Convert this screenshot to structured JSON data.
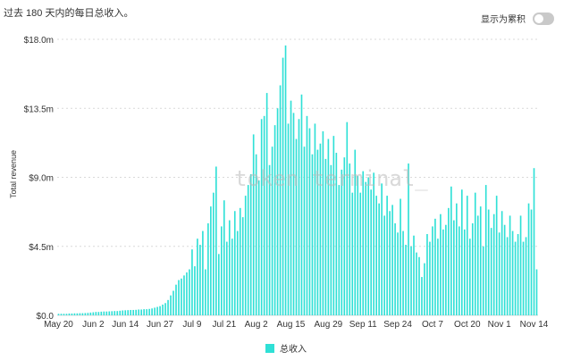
{
  "header": {
    "subtitle": "过去 180 天内的每日总收入。",
    "toggle_label": "显示为累积"
  },
  "watermark": "token terminal_",
  "legend": {
    "label": "总收入"
  },
  "colors": {
    "bar": "#2fe0d6",
    "grid": "#d9d9d9",
    "toggle_off": "#c9c9c9"
  },
  "chart_data": {
    "type": "bar",
    "title": "",
    "subtitle": "过去 180 天内的每日总收入。",
    "ylabel": "Total revenue",
    "xlabel": "",
    "ylim": [
      0,
      18.0
    ],
    "y_unit": "$M",
    "y_ticks": [
      {
        "value": 0,
        "label": "$0.0"
      },
      {
        "value": 4.5,
        "label": "$4.5m"
      },
      {
        "value": 9.0,
        "label": "$9.0m"
      },
      {
        "value": 13.5,
        "label": "$13.5m"
      },
      {
        "value": 18.0,
        "label": "$18.0m"
      }
    ],
    "x_ticks": [
      {
        "day": 0,
        "label": "May 20"
      },
      {
        "day": 13,
        "label": "Jun 2"
      },
      {
        "day": 25,
        "label": "Jun 14"
      },
      {
        "day": 38,
        "label": "Jun 27"
      },
      {
        "day": 50,
        "label": "Jul 9"
      },
      {
        "day": 62,
        "label": "Jul 21"
      },
      {
        "day": 74,
        "label": "Aug 2"
      },
      {
        "day": 87,
        "label": "Aug 15"
      },
      {
        "day": 101,
        "label": "Aug 29"
      },
      {
        "day": 114,
        "label": "Sep 11"
      },
      {
        "day": 127,
        "label": "Sep 24"
      },
      {
        "day": 140,
        "label": "Oct 7"
      },
      {
        "day": 153,
        "label": "Oct 20"
      },
      {
        "day": 165,
        "label": "Nov 1"
      },
      {
        "day": 178,
        "label": "Nov 14"
      }
    ],
    "grid": true,
    "legend_position": "bottom-center",
    "series": [
      {
        "name": "总收入",
        "values": [
          0.1,
          0.1,
          0.1,
          0.1,
          0.12,
          0.12,
          0.13,
          0.13,
          0.14,
          0.14,
          0.15,
          0.16,
          0.18,
          0.2,
          0.22,
          0.22,
          0.24,
          0.25,
          0.25,
          0.26,
          0.27,
          0.28,
          0.28,
          0.3,
          0.32,
          0.33,
          0.34,
          0.35,
          0.35,
          0.36,
          0.38,
          0.38,
          0.4,
          0.4,
          0.42,
          0.45,
          0.5,
          0.55,
          0.6,
          0.7,
          0.8,
          1.0,
          1.3,
          1.6,
          2.0,
          2.3,
          2.4,
          2.6,
          2.8,
          3.0,
          4.3,
          3.2,
          5.0,
          4.6,
          5.5,
          3.0,
          6.0,
          7.1,
          8.0,
          9.7,
          4.0,
          5.8,
          7.5,
          4.8,
          6.2,
          5.0,
          6.8,
          5.5,
          7.0,
          6.4,
          7.8,
          8.5,
          9.2,
          11.8,
          10.5,
          8.8,
          12.8,
          13.0,
          14.5,
          9.8,
          11.0,
          12.4,
          13.5,
          15.0,
          16.8,
          17.6,
          12.5,
          14.0,
          13.2,
          11.5,
          12.8,
          14.4,
          11.0,
          13.0,
          12.2,
          10.5,
          12.5,
          10.8,
          11.2,
          12.0,
          10.2,
          11.5,
          9.8,
          11.7,
          10.6,
          8.5,
          9.5,
          10.3,
          12.6,
          9.9,
          8.0,
          10.8,
          9.1,
          8.0,
          9.4,
          8.7,
          9.0,
          8.2,
          9.3,
          7.8,
          7.3,
          8.6,
          6.5,
          7.8,
          6.8,
          7.2,
          6.0,
          5.4,
          7.6,
          5.5,
          4.6,
          9.9,
          4.5,
          5.2,
          4.1,
          3.8,
          2.5,
          3.4,
          5.3,
          4.8,
          5.8,
          6.3,
          5.0,
          6.6,
          5.6,
          5.9,
          7.0,
          8.4,
          6.2,
          7.3,
          5.8,
          8.2,
          5.6,
          7.8,
          5.0,
          6.0,
          8.0,
          6.5,
          7.1,
          4.5,
          8.5,
          6.9,
          5.7,
          6.6,
          7.8,
          5.4,
          6.8,
          5.9,
          5.1,
          6.5,
          5.5,
          4.8,
          5.3,
          6.5,
          4.8,
          5.1,
          7.3,
          6.9,
          9.6,
          3.0
        ]
      }
    ]
  }
}
